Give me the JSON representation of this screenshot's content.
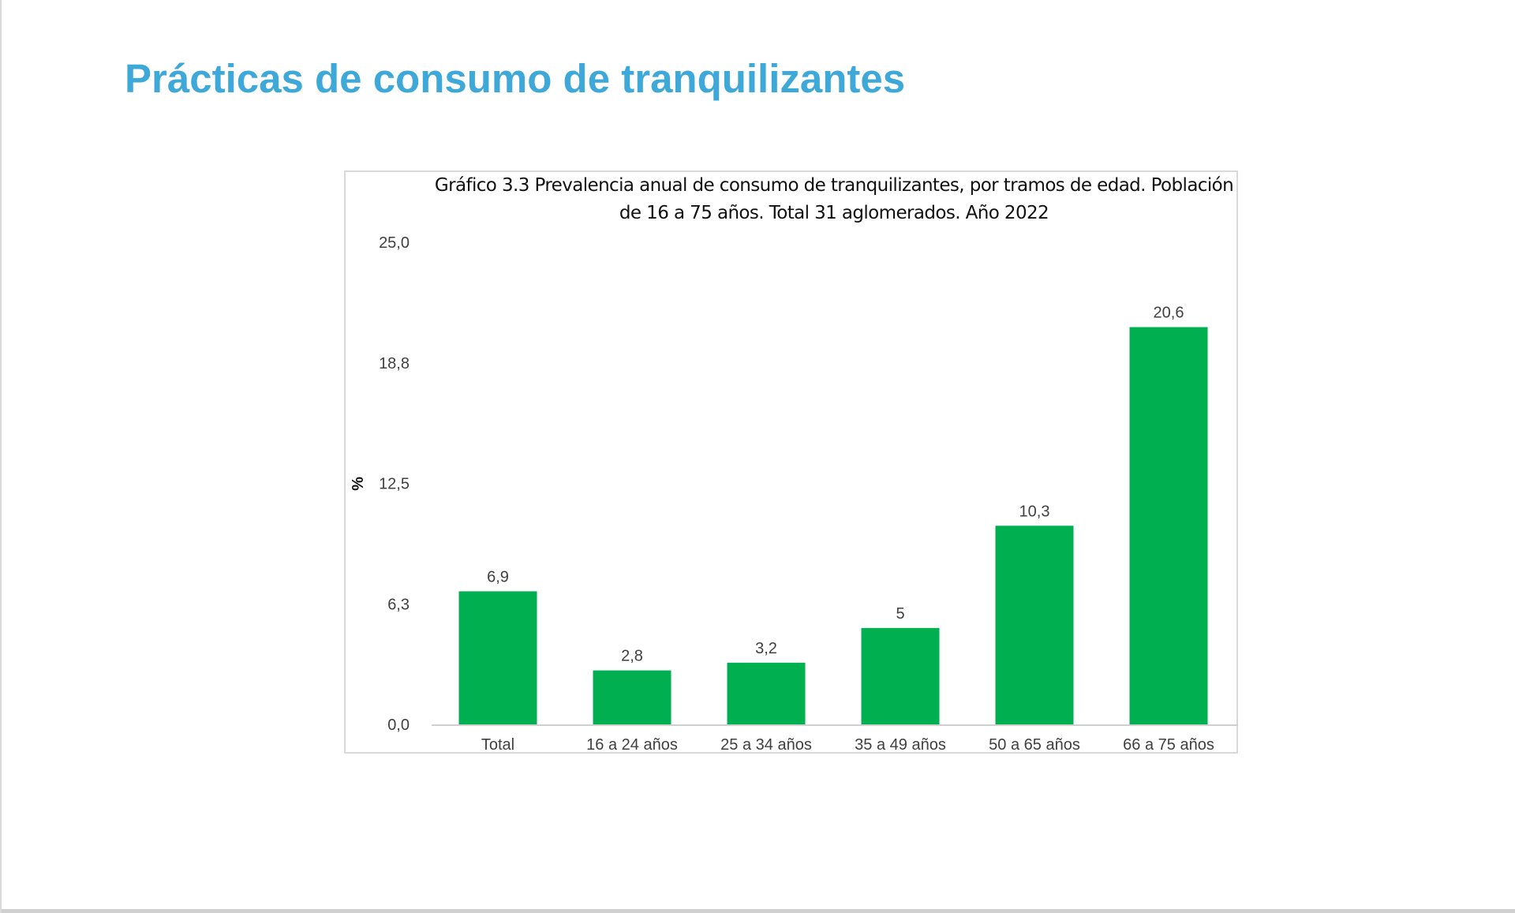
{
  "page": {
    "title": "Prácticas de consumo de tranquilizantes"
  },
  "chart_data": {
    "type": "bar",
    "title_line1": "Gráfico 3.3  Prevalencia anual de consumo de tranquilizantes, por tramos de edad. Población",
    "title_line2": "de 16 a 75 años. Total 31 aglomerados. Año 2022",
    "xlabel": "",
    "ylabel": "%",
    "ylim": [
      0,
      25
    ],
    "y_ticks": [
      0,
      6.25,
      12.5,
      18.75,
      25
    ],
    "y_tick_labels": [
      "0,0",
      "6,3",
      "12,5",
      "18,8",
      "25,0"
    ],
    "categories": [
      "Total",
      "16 a 24 años",
      "25 a 34 años",
      "35 a 49 años",
      "50 a 65 años",
      "66 a 75 años"
    ],
    "values": [
      6.9,
      2.8,
      3.2,
      5,
      10.3,
      20.6
    ],
    "data_labels": [
      "6,9",
      "2,8",
      "3,2",
      "5",
      "10,3",
      "20,6"
    ],
    "bar_color": "#00b050",
    "grid": false
  }
}
